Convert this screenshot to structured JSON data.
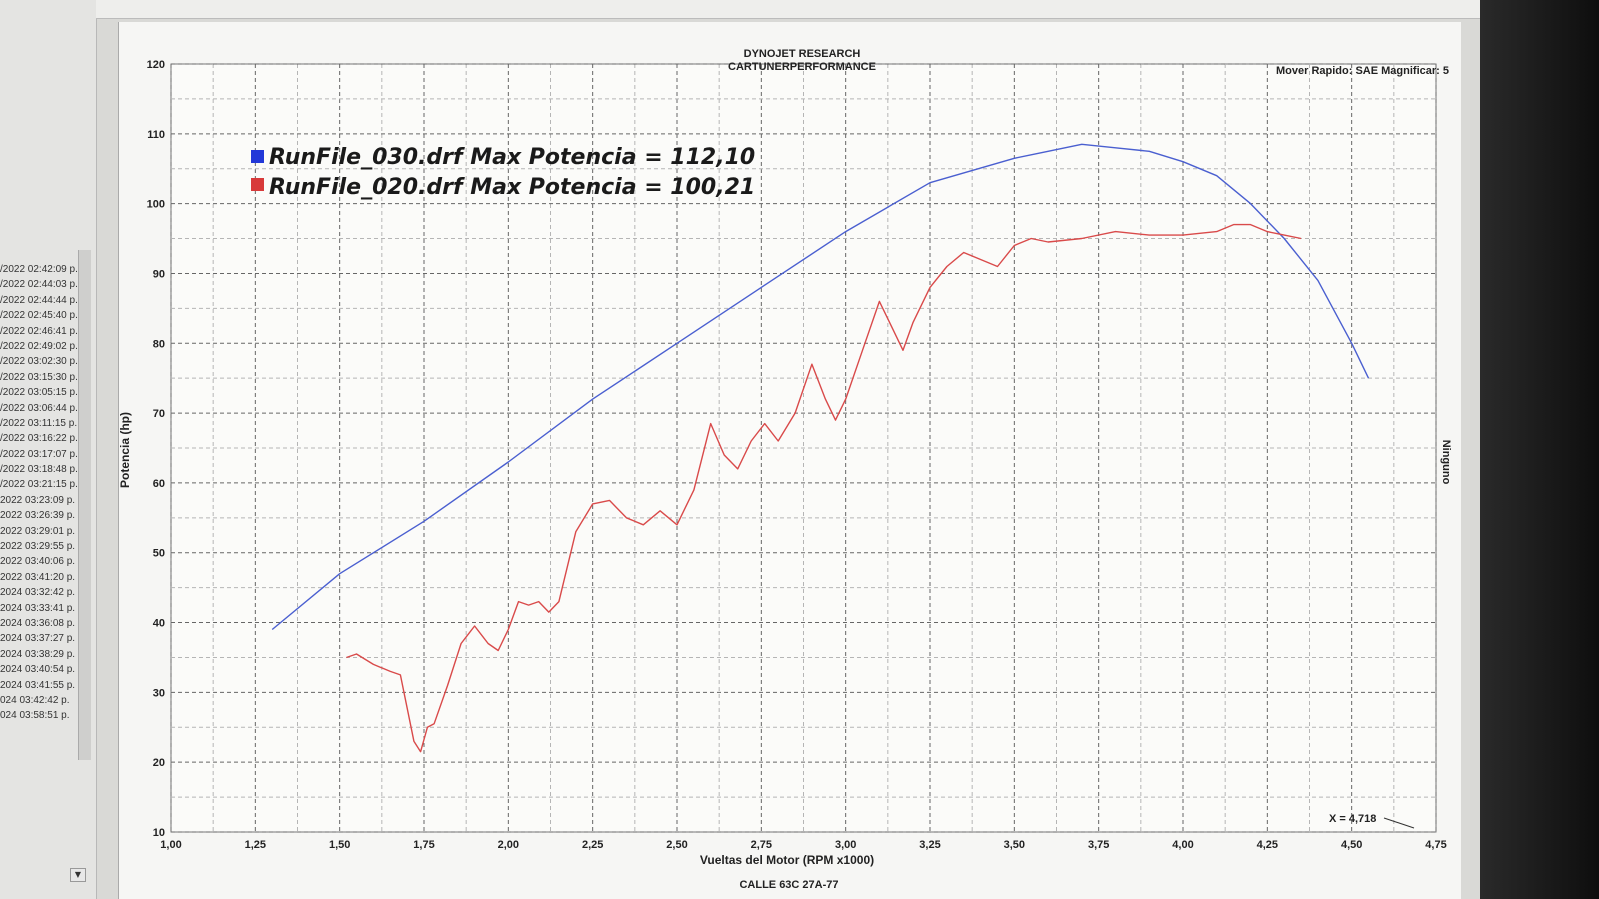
{
  "window": {
    "title_line1": "DYNOJET RESEARCH",
    "title_line2": "CARTUNERPERFORMANCE",
    "top_right": "Mover Rapido: SAE  Magnificar: 5",
    "bottom_partial": "CALLE 63C 27A-77",
    "right_label": "Ninguno"
  },
  "run_list": [
    "/2022 02:42:09 p.",
    "/2022 02:44:03 p.",
    "/2022 02:44:44 p.",
    "/2022 02:45:40 p.",
    "/2022 02:46:41 p.",
    "/2022 02:49:02 p.",
    "/2022 03:02:30 p.",
    "/2022 03:15:30 p.",
    "/2022 03:05:15 p.",
    "/2022 03:06:44 p.",
    "/2022 03:11:15 p.",
    "/2022 03:16:22 p.",
    "/2022 03:17:07 p.",
    "/2022 03:18:48 p.",
    "/2022 03:21:15 p.",
    "2022 03:23:09 p.",
    "2022 03:26:39 p.",
    "2022 03:29:01 p.",
    "2022 03:29:55 p.",
    "2022 03:40:06 p.",
    "2022 03:41:20 p.",
    "2024 03:32:42 p.",
    "2024 03:33:41 p.",
    "2024 03:36:08 p.",
    "2024 03:37:27 p.",
    "2024 03:38:29 p.",
    "2024 03:40:54 p.",
    "2024 03:41:55 p.",
    "024 03:42:42 p.",
    "024 03:58:51 p."
  ],
  "chart_data": {
    "type": "line",
    "xlabel": "Vueltas del Motor (RPM x1000)",
    "ylabel": "Potencia (hp)",
    "xlim": [
      1.0,
      4.75
    ],
    "ylim": [
      10,
      120
    ],
    "x_ticks": [
      "1,00",
      "1,25",
      "1,50",
      "1,75",
      "2,00",
      "2,25",
      "2,50",
      "2,75",
      "3,00",
      "3,25",
      "3,50",
      "3,75",
      "4,00",
      "4,25",
      "4,50",
      "4,75"
    ],
    "y_ticks": [
      "10",
      "20",
      "30",
      "40",
      "50",
      "60",
      "70",
      "80",
      "90",
      "100",
      "110",
      "120"
    ],
    "grid": true,
    "legend_position": "top-left",
    "cursor_readout": "X = 4,718",
    "series": [
      {
        "name": "RunFile_030.drf Max Potencia = 112,10",
        "color": "#4a5fd0",
        "points": [
          [
            1.3,
            39
          ],
          [
            1.5,
            47
          ],
          [
            1.75,
            54.5
          ],
          [
            2.0,
            63
          ],
          [
            2.25,
            72
          ],
          [
            2.5,
            80
          ],
          [
            2.75,
            88
          ],
          [
            3.0,
            96
          ],
          [
            3.25,
            103
          ],
          [
            3.5,
            106.5
          ],
          [
            3.6,
            107.5
          ],
          [
            3.7,
            108.5
          ],
          [
            3.8,
            108
          ],
          [
            3.9,
            107.5
          ],
          [
            4.0,
            106
          ],
          [
            4.1,
            104
          ],
          [
            4.2,
            100
          ],
          [
            4.3,
            95
          ],
          [
            4.4,
            89
          ],
          [
            4.5,
            80
          ],
          [
            4.55,
            75
          ]
        ]
      },
      {
        "name": "RunFile_020.drf Max Potencia = 100,21",
        "color": "#d94a4a",
        "points": [
          [
            1.52,
            35
          ],
          [
            1.55,
            35.5
          ],
          [
            1.6,
            34
          ],
          [
            1.65,
            33
          ],
          [
            1.68,
            32.5
          ],
          [
            1.72,
            23
          ],
          [
            1.74,
            21.5
          ],
          [
            1.76,
            25
          ],
          [
            1.78,
            25.5
          ],
          [
            1.82,
            31
          ],
          [
            1.86,
            37
          ],
          [
            1.9,
            39.5
          ],
          [
            1.94,
            37
          ],
          [
            1.97,
            36
          ],
          [
            2.0,
            39
          ],
          [
            2.03,
            43
          ],
          [
            2.06,
            42.5
          ],
          [
            2.09,
            43
          ],
          [
            2.12,
            41.5
          ],
          [
            2.15,
            43
          ],
          [
            2.2,
            53
          ],
          [
            2.25,
            57
          ],
          [
            2.3,
            57.5
          ],
          [
            2.35,
            55
          ],
          [
            2.4,
            54
          ],
          [
            2.45,
            56
          ],
          [
            2.5,
            54
          ],
          [
            2.55,
            59
          ],
          [
            2.6,
            68.5
          ],
          [
            2.64,
            64
          ],
          [
            2.68,
            62
          ],
          [
            2.72,
            66
          ],
          [
            2.76,
            68.5
          ],
          [
            2.8,
            66
          ],
          [
            2.85,
            70
          ],
          [
            2.9,
            77
          ],
          [
            2.94,
            72
          ],
          [
            2.97,
            69
          ],
          [
            3.0,
            72
          ],
          [
            3.05,
            79
          ],
          [
            3.1,
            86
          ],
          [
            3.14,
            82
          ],
          [
            3.17,
            79
          ],
          [
            3.2,
            83
          ],
          [
            3.25,
            88
          ],
          [
            3.3,
            91
          ],
          [
            3.35,
            93
          ],
          [
            3.4,
            92
          ],
          [
            3.45,
            91
          ],
          [
            3.5,
            94
          ],
          [
            3.55,
            95
          ],
          [
            3.6,
            94.5
          ],
          [
            3.7,
            95
          ],
          [
            3.8,
            96
          ],
          [
            3.9,
            95.5
          ],
          [
            4.0,
            95.5
          ],
          [
            4.1,
            96
          ],
          [
            4.15,
            97
          ],
          [
            4.2,
            97
          ],
          [
            4.25,
            96
          ],
          [
            4.3,
            95.5
          ],
          [
            4.35,
            95
          ]
        ]
      }
    ]
  },
  "colors": {
    "blue_series": "#4a5fd0",
    "red_series": "#d94a4a",
    "legend_blue": "#2238d8",
    "legend_red": "#d83a3a"
  }
}
